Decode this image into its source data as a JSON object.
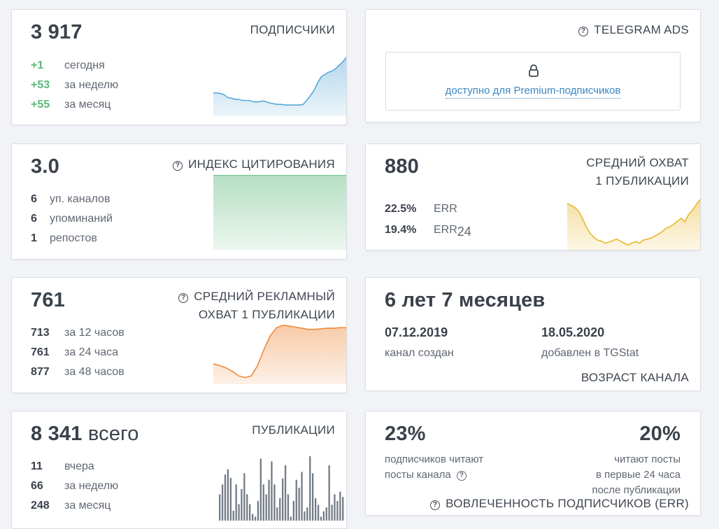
{
  "subscribers": {
    "value": "3 917",
    "title": "ПОДПИСЧИКИ",
    "rows": [
      {
        "n": "+1",
        "label": "сегодня"
      },
      {
        "n": "+53",
        "label": "за неделю"
      },
      {
        "n": "+55",
        "label": "за месяц"
      }
    ],
    "spark": [
      0.38,
      0.38,
      0.37,
      0.35,
      0.3,
      0.29,
      0.27,
      0.27,
      0.25,
      0.25,
      0.25,
      0.23,
      0.22,
      0.23,
      0.24,
      0.22,
      0.2,
      0.19,
      0.18,
      0.18,
      0.17,
      0.17,
      0.17,
      0.17,
      0.17,
      0.18,
      0.25,
      0.33,
      0.42,
      0.55,
      0.66,
      0.7,
      0.74,
      0.76,
      0.8,
      0.86,
      0.92,
      1.0
    ]
  },
  "telegram_ads": {
    "title": "TELEGRAM ADS",
    "lock_text": "доступно для Premium-подписчиков"
  },
  "citation": {
    "value": "3.0",
    "title": "ИНДЕКС ЦИТИРОВАНИЯ",
    "rows": [
      {
        "n": "6",
        "label": "уп. каналов"
      },
      {
        "n": "6",
        "label": "упоминаний"
      },
      {
        "n": "1",
        "label": "репостов"
      }
    ],
    "spark": [
      1.0,
      1.0
    ]
  },
  "reach": {
    "value": "880",
    "title_line1": "СРЕДНИЙ ОХВАТ",
    "title_line2": "1 ПУБЛИКАЦИИ",
    "err_value": "22.5%",
    "err_label": "ERR",
    "err24_value": "19.4%",
    "err24_label": "ERR",
    "err24_sub": "24",
    "spark": [
      0.92,
      0.88,
      0.84,
      0.76,
      0.62,
      0.45,
      0.32,
      0.24,
      0.18,
      0.16,
      0.12,
      0.14,
      0.17,
      0.2,
      0.16,
      0.12,
      0.08,
      0.12,
      0.15,
      0.12,
      0.18,
      0.2,
      0.22,
      0.26,
      0.3,
      0.35,
      0.42,
      0.45,
      0.5,
      0.56,
      0.62,
      0.55,
      0.7,
      0.78,
      0.9,
      1.0
    ]
  },
  "ad_reach": {
    "value": "761",
    "title_line1": "СРЕДНИЙ РЕКЛАМНЫЙ",
    "title_line2": "ОХВАТ 1 ПУБЛИКАЦИИ",
    "rows": [
      {
        "n": "713",
        "label": "за 12 часов"
      },
      {
        "n": "761",
        "label": "за 24 часа"
      },
      {
        "n": "877",
        "label": "за 48 часов"
      }
    ],
    "spark": [
      0.33,
      0.3,
      0.26,
      0.2,
      0.12,
      0.09,
      0.12,
      0.3,
      0.58,
      0.82,
      0.96,
      1.0,
      0.99,
      0.97,
      0.95,
      0.93,
      0.93,
      0.94,
      0.95,
      0.95,
      0.96,
      0.96
    ]
  },
  "age": {
    "value": "6 лет 7 месяцев",
    "created_date": "07.12.2019",
    "created_label": "канал создан",
    "added_date": "18.05.2020",
    "added_label": "добавлен в TGStat",
    "title": "ВОЗРАСТ КАНАЛА"
  },
  "publications": {
    "value": "8 341",
    "unit": "всего",
    "title": "ПУБЛИКАЦИИ",
    "rows": [
      {
        "n": "11",
        "label": "вчера"
      },
      {
        "n": "66",
        "label": "за неделю"
      },
      {
        "n": "248",
        "label": "за месяц"
      }
    ],
    "bars": [
      0.4,
      0.55,
      0.7,
      0.78,
      0.65,
      0.15,
      0.55,
      0.25,
      0.48,
      0.72,
      0.4,
      0.25,
      0.1,
      0.06,
      0.3,
      0.94,
      0.55,
      0.4,
      0.62,
      0.9,
      0.55,
      0.2,
      0.34,
      0.64,
      0.84,
      0.4,
      0.06,
      0.3,
      0.62,
      0.5,
      0.74,
      0.14,
      0.2,
      0.98,
      0.72,
      0.34,
      0.24,
      0.06,
      0.14,
      0.2,
      0.84,
      0.24,
      0.4,
      0.3,
      0.44,
      0.36
    ],
    "bar_color": "#737b86"
  },
  "engagement": {
    "left_value": "23%",
    "left_line1": "подписчиков читают",
    "left_line2": "посты канала",
    "right_value": "20%",
    "right_line1": "читают посты",
    "right_line2": "в первые 24 часа",
    "right_line3": "после публикации",
    "title": "ВОВЛЕЧЕННОСТЬ ПОДПИСЧИКОВ (ERR)"
  },
  "colors": {
    "blue": "#58a8d4",
    "green": "#5cb87a",
    "yellow": "#e8b830",
    "orange": "#f08a3c",
    "link": "#3a88c4"
  },
  "icons": [
    "help-icon",
    "lock-icon"
  ]
}
